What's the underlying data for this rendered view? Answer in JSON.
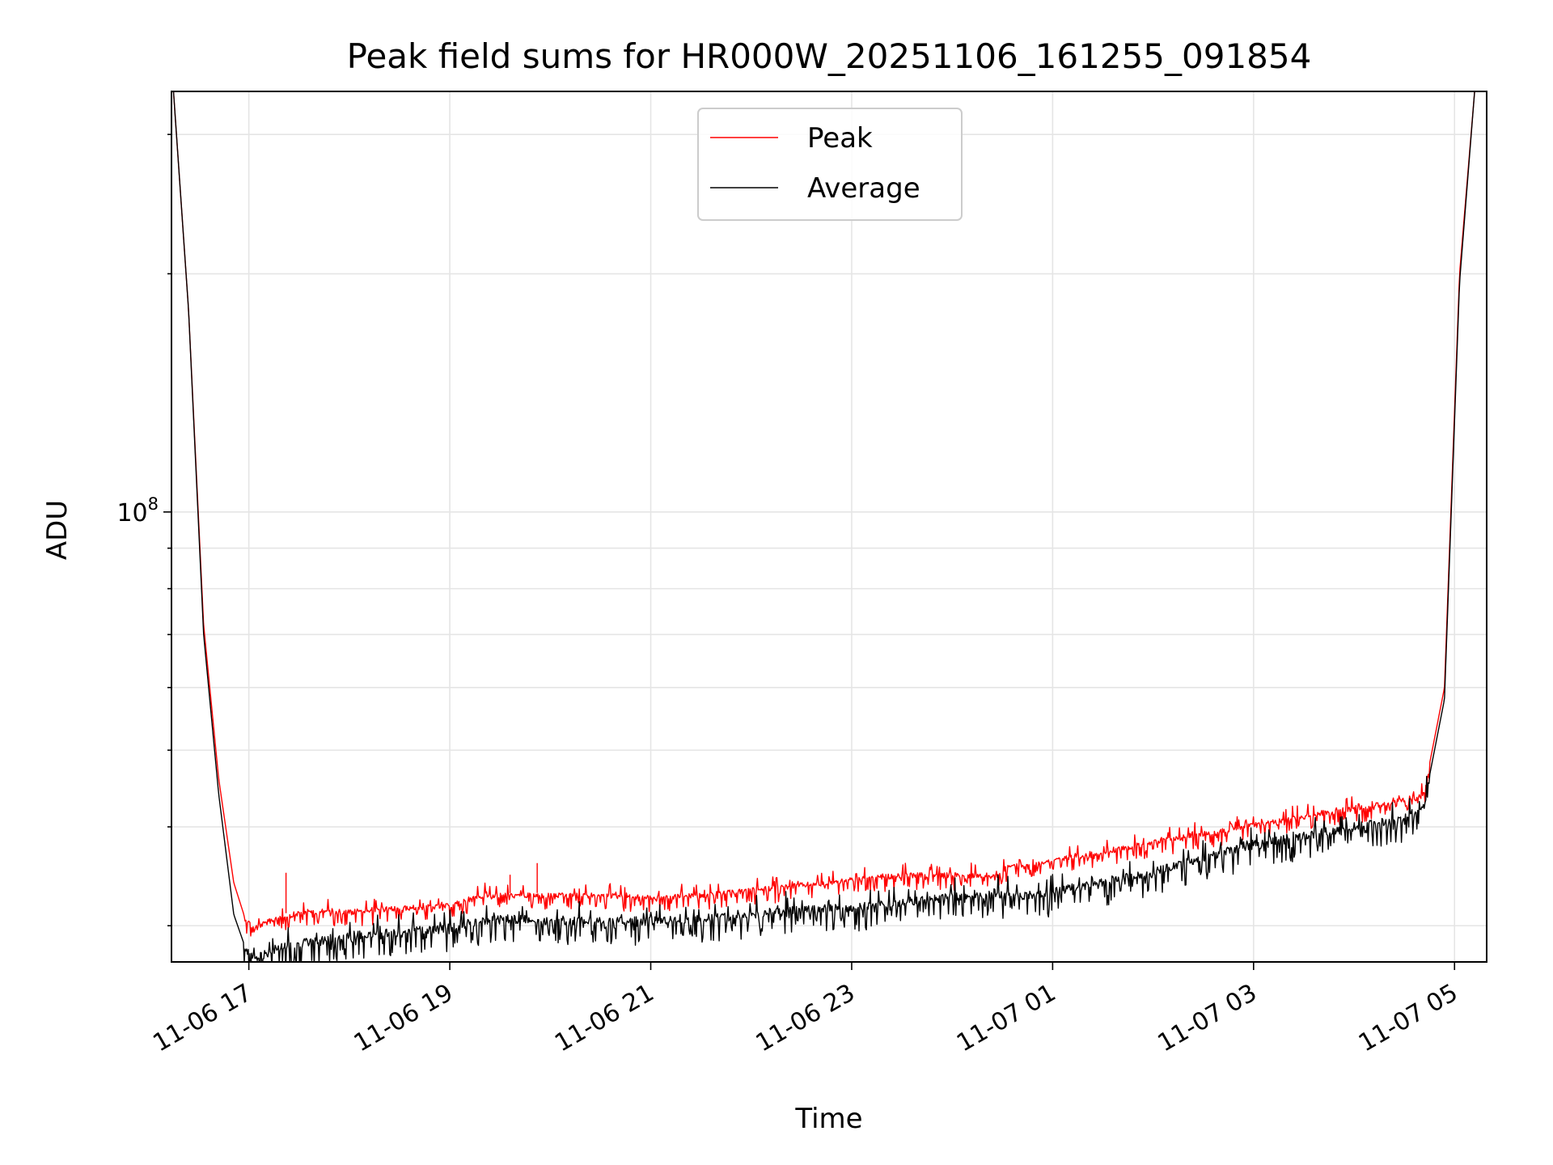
{
  "chart_data": {
    "type": "line",
    "title": "Peak field sums for HR000W_20251106_161255_091854",
    "xlabel": "Time",
    "ylabel": "ADU",
    "yscale": "log",
    "xlim_hours": [
      16.23,
      29.32
    ],
    "ylim": [
      27000000,
      340000000
    ],
    "x_ticks": [
      {
        "hours": 17,
        "label": "11-06 17"
      },
      {
        "hours": 19,
        "label": "11-06 19"
      },
      {
        "hours": 21,
        "label": "11-06 21"
      },
      {
        "hours": 23,
        "label": "11-06 23"
      },
      {
        "hours": 25,
        "label": "11-07 01"
      },
      {
        "hours": 27,
        "label": "11-07 03"
      },
      {
        "hours": 29,
        "label": "11-07 05"
      }
    ],
    "y_major_tick": {
      "value": 100000000,
      "base": "10",
      "exponent": "8"
    },
    "y_minor_ticks": [
      30000000,
      40000000,
      50000000,
      60000000,
      70000000,
      80000000,
      90000000,
      200000000,
      300000000
    ],
    "grid": true,
    "legend": {
      "placement": "upper center",
      "entries": [
        {
          "name": "Peak",
          "color": "#ff0000"
        },
        {
          "name": "Average",
          "color": "#000000"
        }
      ]
    },
    "series": [
      {
        "name": "Peak",
        "color": "#ff0000",
        "x": [
          16.25,
          16.4,
          16.55,
          16.7,
          16.85,
          16.95,
          17.05,
          17.3,
          17.6,
          18,
          18.5,
          19,
          19.3,
          19.6,
          20,
          20.5,
          21,
          21.5,
          22,
          22.5,
          23,
          23.5,
          24,
          24.4,
          24.6,
          25,
          25.5,
          26,
          26.5,
          27,
          27.5,
          28,
          28.5,
          28.7,
          28.9,
          29.05,
          29.2
        ],
        "y": [
          340000000,
          180000000,
          72000000,
          46000000,
          34000000,
          31000000,
          30000000,
          31000000,
          31500000,
          31500000,
          31800000,
          32000000,
          33000000,
          33000000,
          33000000,
          33000000,
          32800000,
          33000000,
          33500000,
          34000000,
          34500000,
          35000000,
          35000000,
          35000000,
          36000000,
          36500000,
          37500000,
          38500000,
          39500000,
          40500000,
          41500000,
          42500000,
          43500000,
          44500000,
          60000000,
          200000000,
          340000000
        ],
        "spikes": [
          {
            "x": 17.37,
            "y": 35000000
          },
          {
            "x": 19.6,
            "y": 34800000
          },
          {
            "x": 19.87,
            "y": 36000000
          }
        ]
      },
      {
        "name": "Average",
        "color": "#000000",
        "x": [
          16.25,
          16.4,
          16.55,
          16.7,
          16.85,
          16.95,
          17.05,
          17.3,
          17.6,
          18,
          18.5,
          19,
          19.3,
          19.6,
          20,
          20.5,
          21,
          21.5,
          22,
          22.5,
          23,
          23.5,
          24,
          24.4,
          24.6,
          25,
          25.5,
          26,
          26.5,
          27,
          27.5,
          28,
          28.5,
          28.7,
          28.9,
          29.05,
          29.2
        ],
        "y": [
          340000000,
          180000000,
          70000000,
          44000000,
          31000000,
          28500000,
          27500000,
          28500000,
          29000000,
          29500000,
          29800000,
          30200000,
          30800000,
          31000000,
          30800000,
          30800000,
          30800000,
          31000000,
          31300000,
          31800000,
          32000000,
          32500000,
          33000000,
          33500000,
          33000000,
          33500000,
          34500000,
          35500000,
          37000000,
          38500000,
          39500000,
          40500000,
          41500000,
          43000000,
          58000000,
          195000000,
          340000000
        ]
      }
    ]
  }
}
